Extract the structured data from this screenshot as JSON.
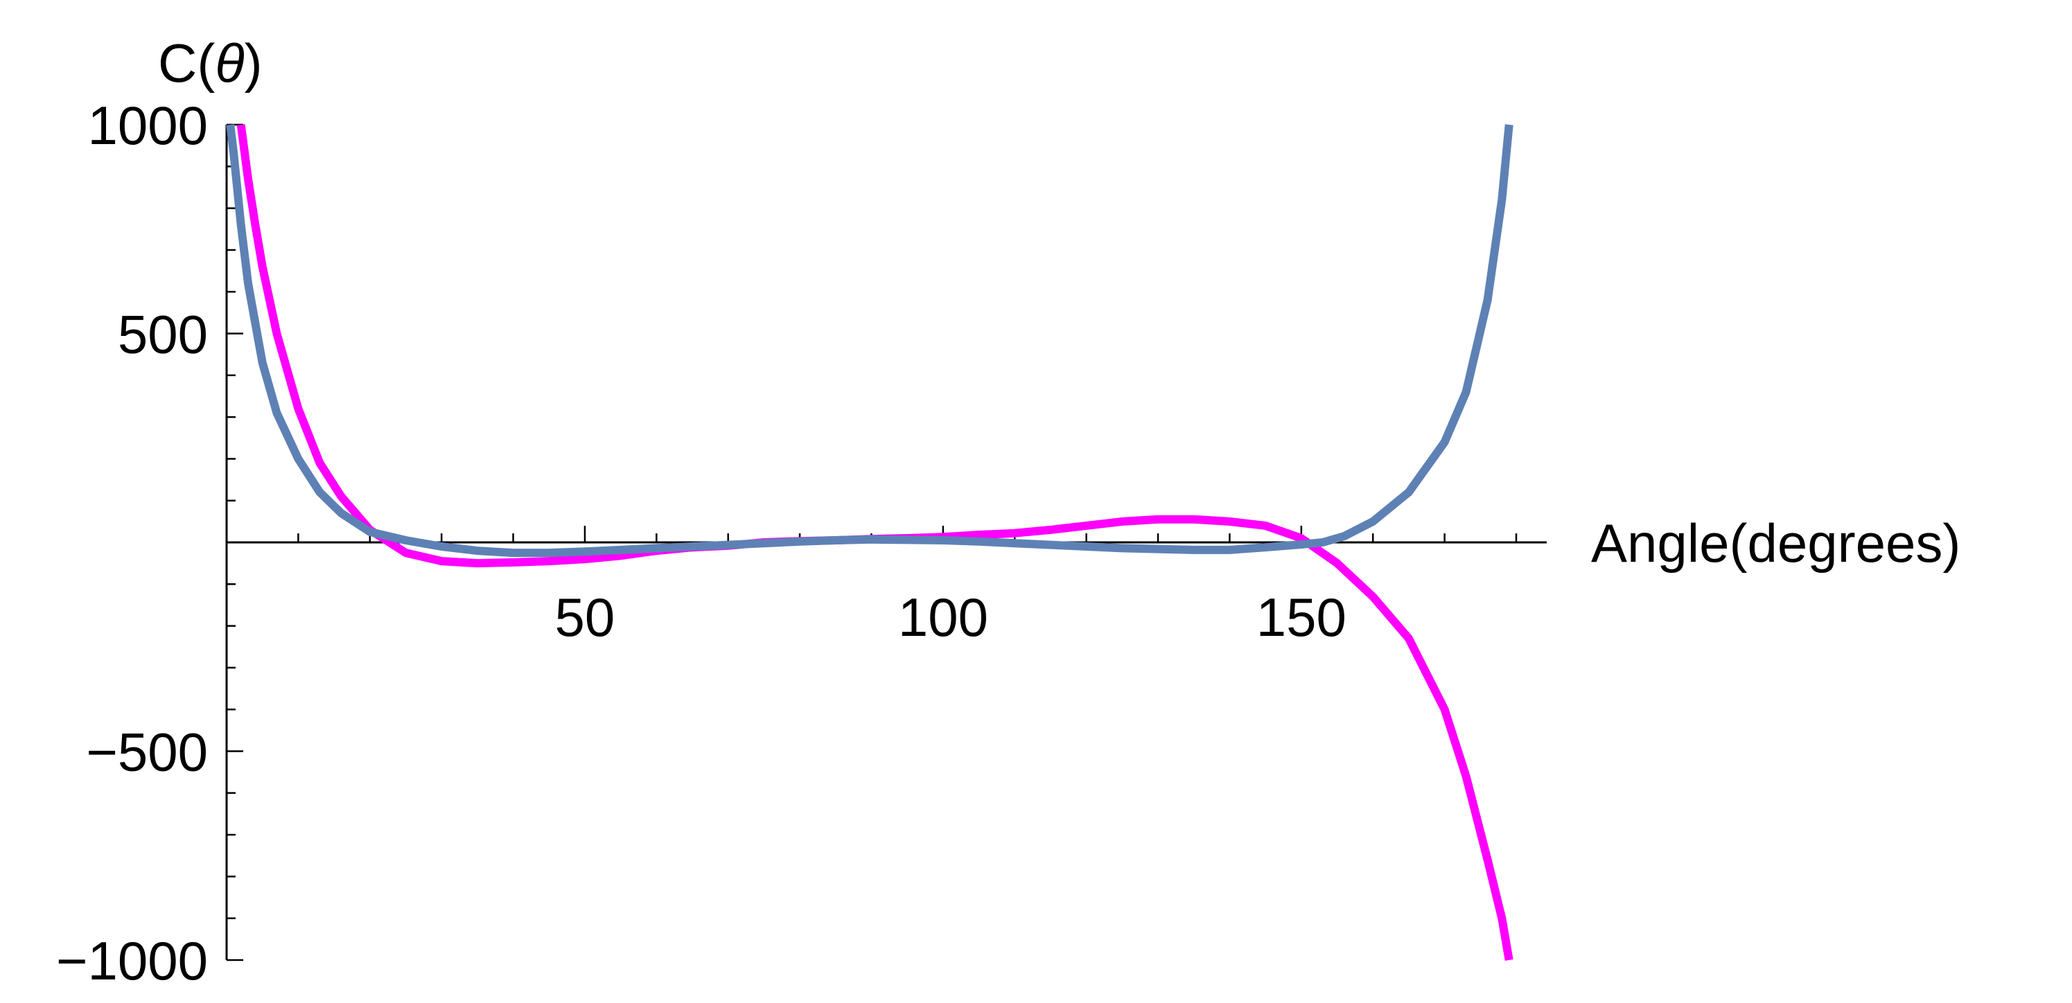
{
  "chart_data": {
    "type": "line",
    "title": "",
    "xlabel": "Angle(degrees)",
    "ylabel": {
      "prefix": "C(",
      "symbol": "θ",
      "suffix": ")"
    },
    "xlim": [
      0,
      180
    ],
    "ylim": [
      -1000,
      1000
    ],
    "x_ticks": [
      50,
      100,
      150
    ],
    "y_ticks": [
      1000,
      500,
      -500,
      -1000
    ],
    "y_tick_labels": [
      "1000",
      "500",
      "−500",
      "−1000"
    ],
    "x_minor_step": 10,
    "y_minor_step": 100,
    "grid": false,
    "legend": "none",
    "series": [
      {
        "color": "#ff00ff",
        "x": [
          2,
          3,
          4,
          5,
          7,
          10,
          13,
          16,
          20,
          25,
          30,
          35,
          40,
          45,
          50,
          55,
          60,
          65,
          70,
          75,
          80,
          85,
          90,
          95,
          100,
          105,
          110,
          115,
          120,
          125,
          130,
          135,
          140,
          145,
          150,
          155,
          160,
          165,
          170,
          173,
          176,
          178,
          179
        ],
        "y": [
          1000,
          870,
          760,
          660,
          500,
          320,
          190,
          110,
          30,
          -25,
          -45,
          -50,
          -48,
          -45,
          -40,
          -32,
          -20,
          -12,
          -8,
          0,
          3,
          5,
          8,
          10,
          13,
          18,
          22,
          30,
          40,
          50,
          55,
          55,
          50,
          40,
          10,
          -50,
          -130,
          -230,
          -400,
          -560,
          -760,
          -900,
          -1000
        ]
      },
      {
        "color": "#5e81b5",
        "x": [
          0.5,
          1,
          2,
          3,
          5,
          7,
          10,
          13,
          16,
          20,
          25,
          30,
          35,
          40,
          45,
          50,
          55,
          60,
          65,
          70,
          75,
          80,
          85,
          90,
          95,
          100,
          105,
          110,
          115,
          120,
          125,
          130,
          135,
          140,
          145,
          150,
          153,
          156,
          160,
          165,
          170,
          173,
          176,
          178,
          179
        ],
        "y": [
          1000,
          930,
          760,
          620,
          430,
          310,
          200,
          120,
          70,
          25,
          5,
          -10,
          -20,
          -25,
          -25,
          -22,
          -18,
          -14,
          -10,
          -6,
          -2,
          2,
          5,
          7,
          6,
          5,
          2,
          -2,
          -6,
          -10,
          -14,
          -16,
          -18,
          -18,
          -12,
          -5,
          0,
          15,
          50,
          120,
          240,
          360,
          580,
          820,
          1000
        ]
      }
    ]
  }
}
